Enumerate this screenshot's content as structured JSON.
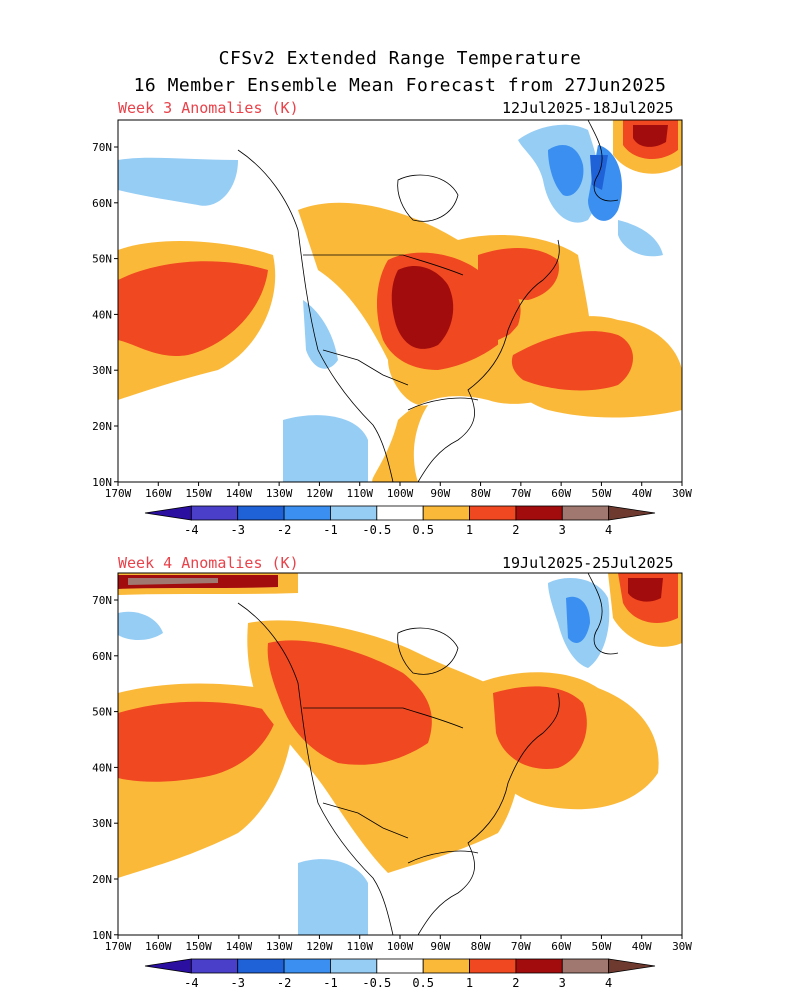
{
  "header": {
    "title_line1": "CFSv2 Extended Range Temperature",
    "title_line2": "16 Member Ensemble Mean Forecast from 27Jun2025"
  },
  "panels": [
    {
      "label": "Week 3 Anomalies (K)",
      "date_range": "12Jul2025-18Jul2025"
    },
    {
      "label": "Week 4 Anomalies (K)",
      "date_range": "19Jul2025-25Jul2025"
    }
  ],
  "axes": {
    "lat_labels": [
      "70N",
      "60N",
      "50N",
      "40N",
      "30N",
      "20N",
      "10N"
    ],
    "lon_labels": [
      "170W",
      "160W",
      "150W",
      "140W",
      "130W",
      "120W",
      "110W",
      "100W",
      "90W",
      "80W",
      "70W",
      "60W",
      "50W",
      "40W",
      "30W"
    ]
  },
  "colorbar": {
    "tick_labels": [
      "-4",
      "-3",
      "-2",
      "-1",
      "-0.5",
      "0.5",
      "1",
      "2",
      "3",
      "4"
    ],
    "colors": [
      "#2a0fa0",
      "#4a3fc8",
      "#1f62d8",
      "#3a8ff0",
      "#95cdf5",
      "#ffffff",
      "#fbb93a",
      "#f04820",
      "#a30c0c",
      "#a07870",
      "#6e3a30"
    ]
  }
}
